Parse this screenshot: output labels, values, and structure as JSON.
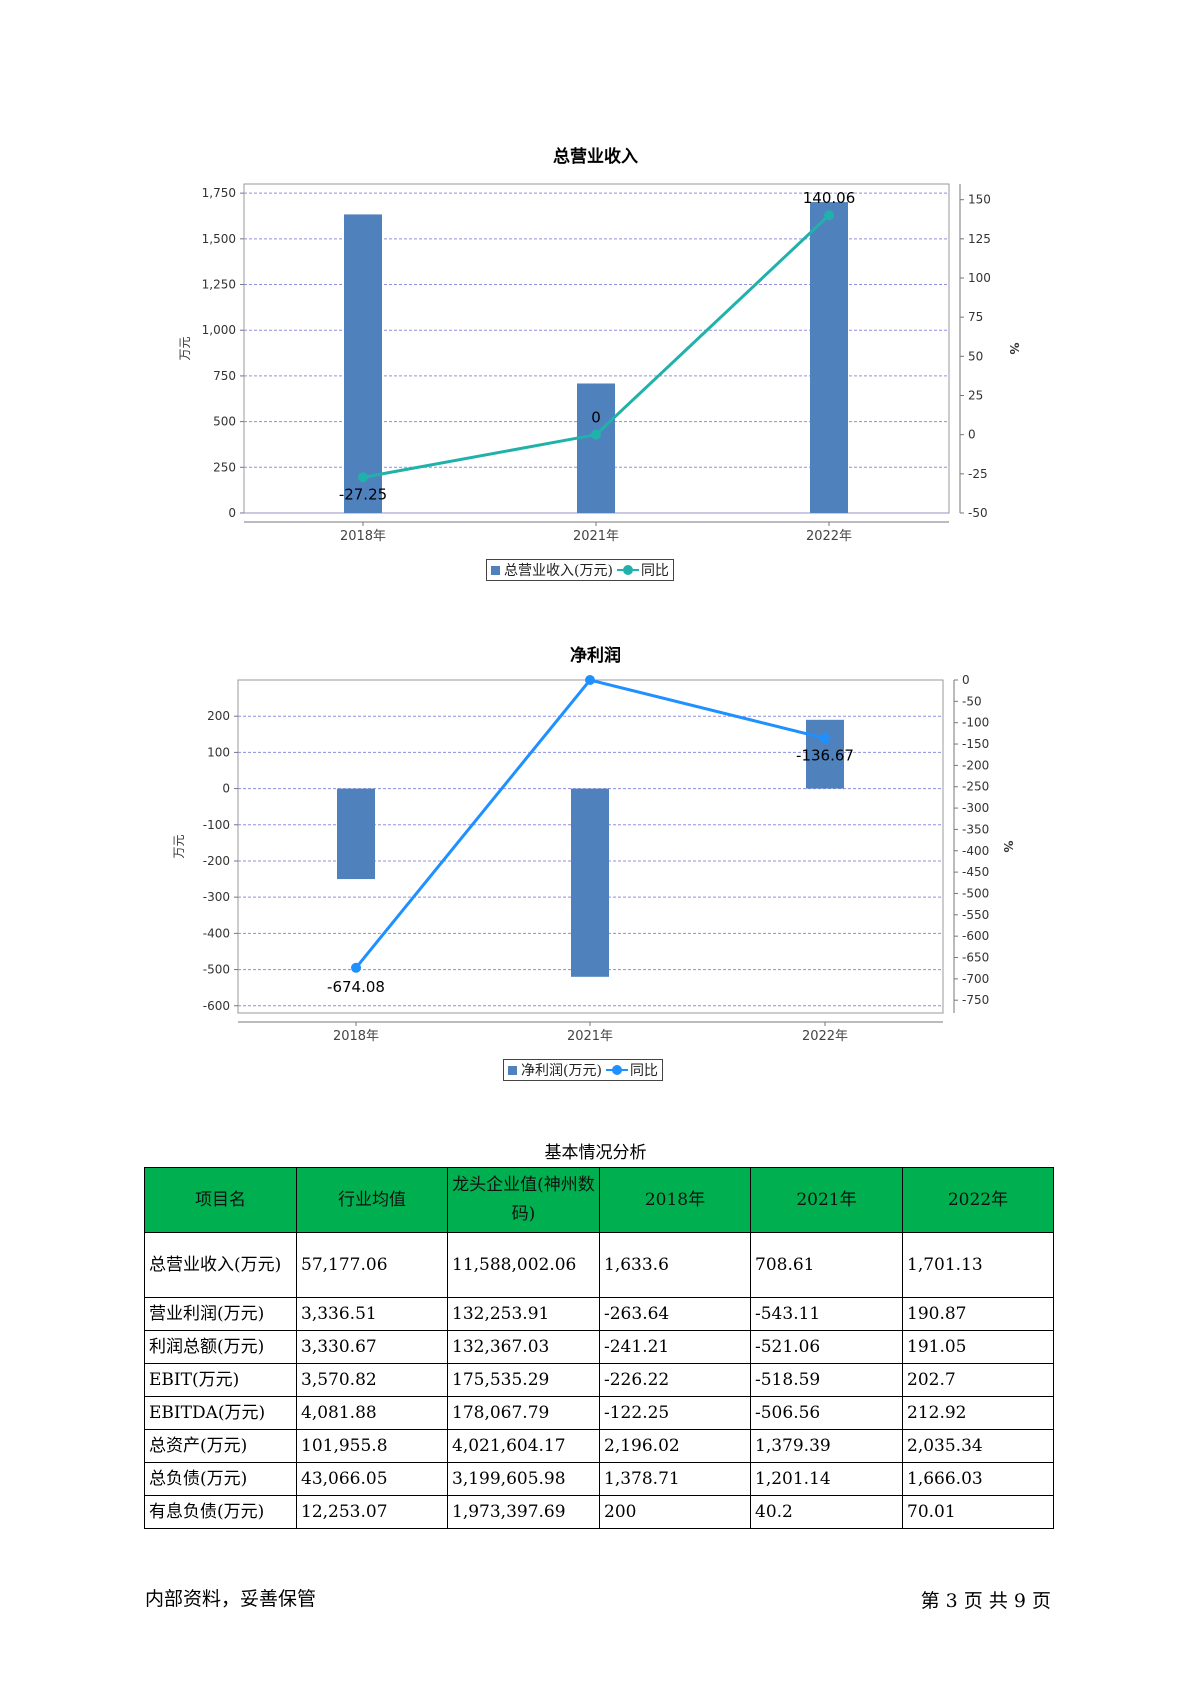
{
  "chart_data": [
    {
      "type": "bar",
      "title": "总营业收入",
      "categories": [
        "2018年",
        "2021年",
        "2022年"
      ],
      "series": [
        {
          "name": "总营业收入(万元)",
          "type": "bar",
          "axis": "left",
          "values": [
            1633.6,
            708.61,
            1701.13
          ],
          "color": "#4f81bd"
        },
        {
          "name": "同比",
          "type": "line",
          "axis": "right",
          "values": [
            -27.25,
            0,
            140.06
          ],
          "labels": [
            "-27.25",
            "0",
            "140.06"
          ],
          "color": "#20b2aa"
        }
      ],
      "ylabel": "万元",
      "y2label": "%",
      "ylim": [
        0,
        1800
      ],
      "y2lim": [
        -50,
        160
      ],
      "yticks": [
        0,
        250,
        500,
        750,
        1000,
        1250,
        1500,
        1750
      ],
      "yticklabels": [
        "0",
        "250",
        "500",
        "750",
        "1,000",
        "1,250",
        "1,500",
        "1,750"
      ],
      "y2ticks": [
        -50,
        -25,
        0,
        25,
        50,
        75,
        100,
        125,
        150
      ],
      "grid": true,
      "legend": "bottom"
    },
    {
      "type": "bar",
      "title": "净利润",
      "categories": [
        "2018年",
        "2021年",
        "2022年"
      ],
      "series": [
        {
          "name": "净利润(万元)",
          "type": "bar",
          "axis": "left",
          "values": [
            -250,
            -520,
            190
          ],
          "color": "#4f81bd"
        },
        {
          "name": "同比",
          "type": "line",
          "axis": "right",
          "values": [
            -674.08,
            0,
            -136.67
          ],
          "labels": [
            "-674.08",
            "",
            "-136.67"
          ],
          "color": "#1e90ff"
        }
      ],
      "ylabel": "万元",
      "y2label": "%",
      "ylim": [
        -620,
        300
      ],
      "y2lim": [
        -780,
        0
      ],
      "yticks": [
        -600,
        -500,
        -400,
        -300,
        -200,
        -100,
        0,
        100,
        200
      ],
      "y2ticks": [
        0,
        -50,
        -100,
        -150,
        -200,
        -250,
        -300,
        -350,
        -400,
        -450,
        -500,
        -550,
        -600,
        -650,
        -700,
        -750
      ],
      "grid": true,
      "legend": "bottom"
    }
  ],
  "table": {
    "title": "基本情况分析",
    "headers": [
      "项目名",
      "行业均值",
      "龙头企业值(神州数码)",
      "2018年",
      "2021年",
      "2022年"
    ],
    "rows": [
      [
        "总营业收入(万元)",
        "57,177.06",
        "11,588,002.06",
        "1,633.6",
        "708.61",
        "1,701.13"
      ],
      [
        "营业利润(万元)",
        "3,336.51",
        "132,253.91",
        "-263.64",
        "-543.11",
        "190.87"
      ],
      [
        "利润总额(万元)",
        "3,330.67",
        "132,367.03",
        "-241.21",
        "-521.06",
        "191.05"
      ],
      [
        "EBIT(万元)",
        "3,570.82",
        "175,535.29",
        "-226.22",
        "-518.59",
        "202.7"
      ],
      [
        "EBITDA(万元)",
        "4,081.88",
        "178,067.79",
        "-122.25",
        "-506.56",
        "212.92"
      ],
      [
        "总资产(万元)",
        "101,955.8",
        "4,021,604.17",
        "2,196.02",
        "1,379.39",
        "2,035.34"
      ],
      [
        "总负债(万元)",
        "43,066.05",
        "3,199,605.98",
        "1,378.71",
        "1,201.14",
        "1,666.03"
      ],
      [
        "有息负债(万元)",
        "12,253.07",
        "1,973,397.69",
        "200",
        "40.2",
        "70.01"
      ]
    ]
  },
  "footer": {
    "left": "内部资料，妥善保管",
    "right": "第 3 页  共 9 页"
  }
}
